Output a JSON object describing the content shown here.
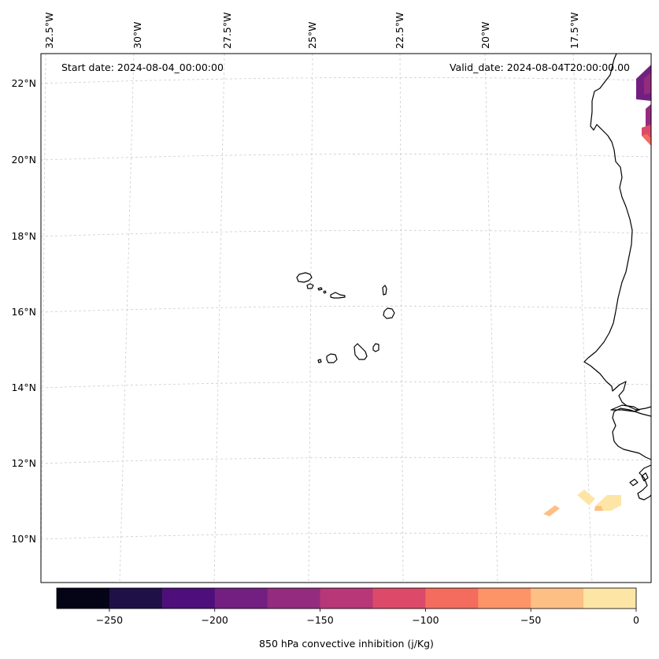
{
  "map": {
    "start_label": "Start date: 2024-08-04_00:00:00",
    "valid_label": "Valid_date: 2024-08-04T20:00:00.00",
    "lon_labels": [
      "32.5°W",
      "30°W",
      "27.5°W",
      "25°W",
      "22.5°W",
      "20°W",
      "17.5°W"
    ],
    "lat_labels": [
      "22°N",
      "20°N",
      "18°N",
      "16°N",
      "14°N",
      "12°N",
      "10°N"
    ],
    "coast_color": "#000000",
    "grid_color": "#cccccc"
  },
  "colorbar": {
    "label": "850 hPa convective inhibition (j/Kg)",
    "ticks": [
      "−250",
      "−200",
      "−150",
      "−100",
      "−50",
      "0"
    ],
    "bounds": [
      -275,
      0
    ],
    "step": 25,
    "colors": [
      "#050417",
      "#1f1147",
      "#4e0f7b",
      "#731f81",
      "#942b7f",
      "#b73779",
      "#dc4a6a",
      "#f36c5d",
      "#fd9467",
      "#febf84",
      "#fde5a6"
    ]
  }
}
